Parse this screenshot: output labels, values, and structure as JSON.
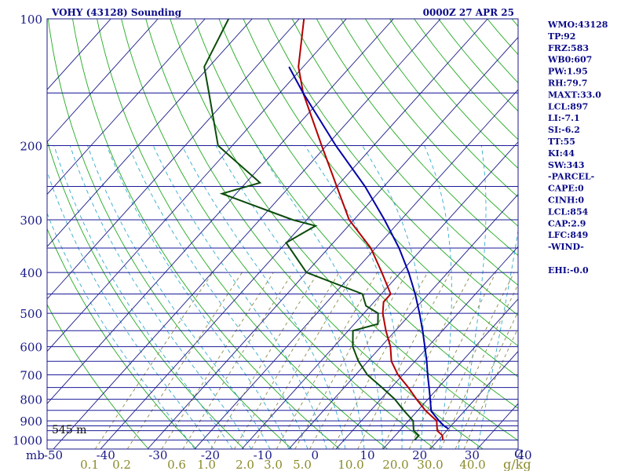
{
  "chart_data": {
    "type": "skew-t log-p sounding",
    "title": "VOHY (43128) Sounding",
    "time": "0000Z 27 APR 25",
    "station_height_label": "545 m",
    "pressure_axis": {
      "unit": "mb",
      "range": [
        1000,
        100
      ],
      "scale": "log",
      "tick_labels": [
        "100",
        "200",
        "300",
        "400",
        "500",
        "600",
        "700",
        "800",
        "900",
        "1000"
      ],
      "tick_values": [
        100,
        200,
        300,
        400,
        500,
        600,
        700,
        800,
        900,
        1000
      ],
      "isobars": [
        100,
        150,
        200,
        250,
        300,
        350,
        400,
        450,
        500,
        550,
        600,
        650,
        700,
        750,
        800,
        850,
        900,
        925,
        950,
        1000
      ]
    },
    "temperature_axis": {
      "unit": "C",
      "tick_labels": [
        "-50",
        "-40",
        "-30",
        "-20",
        "-10",
        "0",
        "10",
        "20",
        "30",
        "40"
      ],
      "tick_values": [
        -50,
        -40,
        -30,
        -20,
        -10,
        0,
        10,
        20,
        30,
        40
      ],
      "unit_label": "C",
      "skewed_isotherms": true
    },
    "mixing_ratio_axis": {
      "unit": "g/kg",
      "tick_labels": [
        "0.1",
        "0.2",
        "0.6",
        "1.0",
        "2.0",
        "3.0",
        "5.0",
        "10.0",
        "20.0",
        "30.0",
        "40.0"
      ]
    },
    "series": [
      {
        "name": "Temperature",
        "color": "#b30000",
        "points": [
          {
            "p": 1000,
            "t": 31.0
          },
          {
            "p": 975,
            "t": 30.0
          },
          {
            "p": 950,
            "t": 28.0
          },
          {
            "p": 925,
            "t": 27.0
          },
          {
            "p": 900,
            "t": 26.0
          },
          {
            "p": 850,
            "t": 21.6
          },
          {
            "p": 800,
            "t": 17.6
          },
          {
            "p": 750,
            "t": 13.6
          },
          {
            "p": 700,
            "t": 9.0
          },
          {
            "p": 650,
            "t": 5.0
          },
          {
            "p": 600,
            "t": 2.0
          },
          {
            "p": 550,
            "t": -2.0
          },
          {
            "p": 500,
            "t": -6.0
          },
          {
            "p": 470,
            "t": -8.0
          },
          {
            "p": 450,
            "t": -8.0
          },
          {
            "p": 400,
            "t": -14.0
          },
          {
            "p": 350,
            "t": -21.0
          },
          {
            "p": 300,
            "t": -31.0
          },
          {
            "p": 250,
            "t": -40.0
          },
          {
            "p": 200,
            "t": -51.0
          },
          {
            "p": 150,
            "t": -65.0
          },
          {
            "p": 130,
            "t": -71.0
          },
          {
            "p": 100,
            "t": -79.0
          }
        ]
      },
      {
        "name": "Dewpoint",
        "color": "#0b4b0b",
        "points": [
          {
            "p": 1000,
            "t": 25.0
          },
          {
            "p": 975,
            "t": 25.0
          },
          {
            "p": 950,
            "t": 23.0
          },
          {
            "p": 925,
            "t": 22.0
          },
          {
            "p": 900,
            "t": 21.0
          },
          {
            "p": 850,
            "t": 17.0
          },
          {
            "p": 800,
            "t": 13.0
          },
          {
            "p": 750,
            "t": 8.0
          },
          {
            "p": 700,
            "t": 2.5
          },
          {
            "p": 650,
            "t": -2.0
          },
          {
            "p": 600,
            "t": -6.0
          },
          {
            "p": 550,
            "t": -9.0
          },
          {
            "p": 530,
            "t": -5.0
          },
          {
            "p": 500,
            "t": -7.0
          },
          {
            "p": 480,
            "t": -11.0
          },
          {
            "p": 450,
            "t": -14.0
          },
          {
            "p": 400,
            "t": -30.0
          },
          {
            "p": 340,
            "t": -40.0
          },
          {
            "p": 310,
            "t": -37.0
          },
          {
            "p": 300,
            "t": -43.0
          },
          {
            "p": 260,
            "t": -63.0
          },
          {
            "p": 245,
            "t": -57.0
          },
          {
            "p": 200,
            "t": -73.0
          },
          {
            "p": 150,
            "t": -85.0
          },
          {
            "p": 130,
            "t": -91.0
          },
          {
            "p": 100,
            "t": -95.0
          }
        ]
      },
      {
        "name": "Parcel",
        "color": "#0000a8",
        "points": [
          {
            "p": 940,
            "t": 30.0
          },
          {
            "p": 925,
            "t": 28.5
          },
          {
            "p": 900,
            "t": 26.5
          },
          {
            "p": 854,
            "t": 23.0
          },
          {
            "p": 800,
            "t": 20.5
          },
          {
            "p": 750,
            "t": 18.0
          },
          {
            "p": 700,
            "t": 15.3
          },
          {
            "p": 650,
            "t": 12.5
          },
          {
            "p": 600,
            "t": 9.3
          },
          {
            "p": 550,
            "t": 5.8
          },
          {
            "p": 500,
            "t": 1.8
          },
          {
            "p": 450,
            "t": -2.8
          },
          {
            "p": 400,
            "t": -8.3
          },
          {
            "p": 350,
            "t": -15.0
          },
          {
            "p": 300,
            "t": -23.5
          },
          {
            "p": 250,
            "t": -34.0
          },
          {
            "p": 200,
            "t": -48.0
          },
          {
            "p": 150,
            "t": -65.0
          },
          {
            "p": 130,
            "t": -73.0
          }
        ]
      }
    ],
    "indices": [
      "WMO:43128",
      "TP:92",
      "FRZ:583",
      "WB0:607",
      "PW:1.95",
      "RH:79.7",
      "MAXT:33.0",
      "LCL:897",
      "LI:-7.1",
      "SI:-6.2",
      "TT:55",
      "KI:44",
      "SW:343",
      "-PARCEL-",
      "CAPE:0",
      "CINH:0",
      "LCL:854",
      "CAP:2.9",
      "LFC:849",
      "-WIND-",
      "",
      "EHI:-0.0"
    ],
    "colors": {
      "isobar": "#1a1a99",
      "isotherm": "#1a1a88",
      "dry_adiabat": "#22aa22",
      "moist_adiabat": "#33aacc",
      "mixing_ratio": "#8a8a4a",
      "frame": "#1a1a88",
      "axis_text": "#1a1a88",
      "mixing_text": "#8a8a2a"
    },
    "grid": true
  }
}
